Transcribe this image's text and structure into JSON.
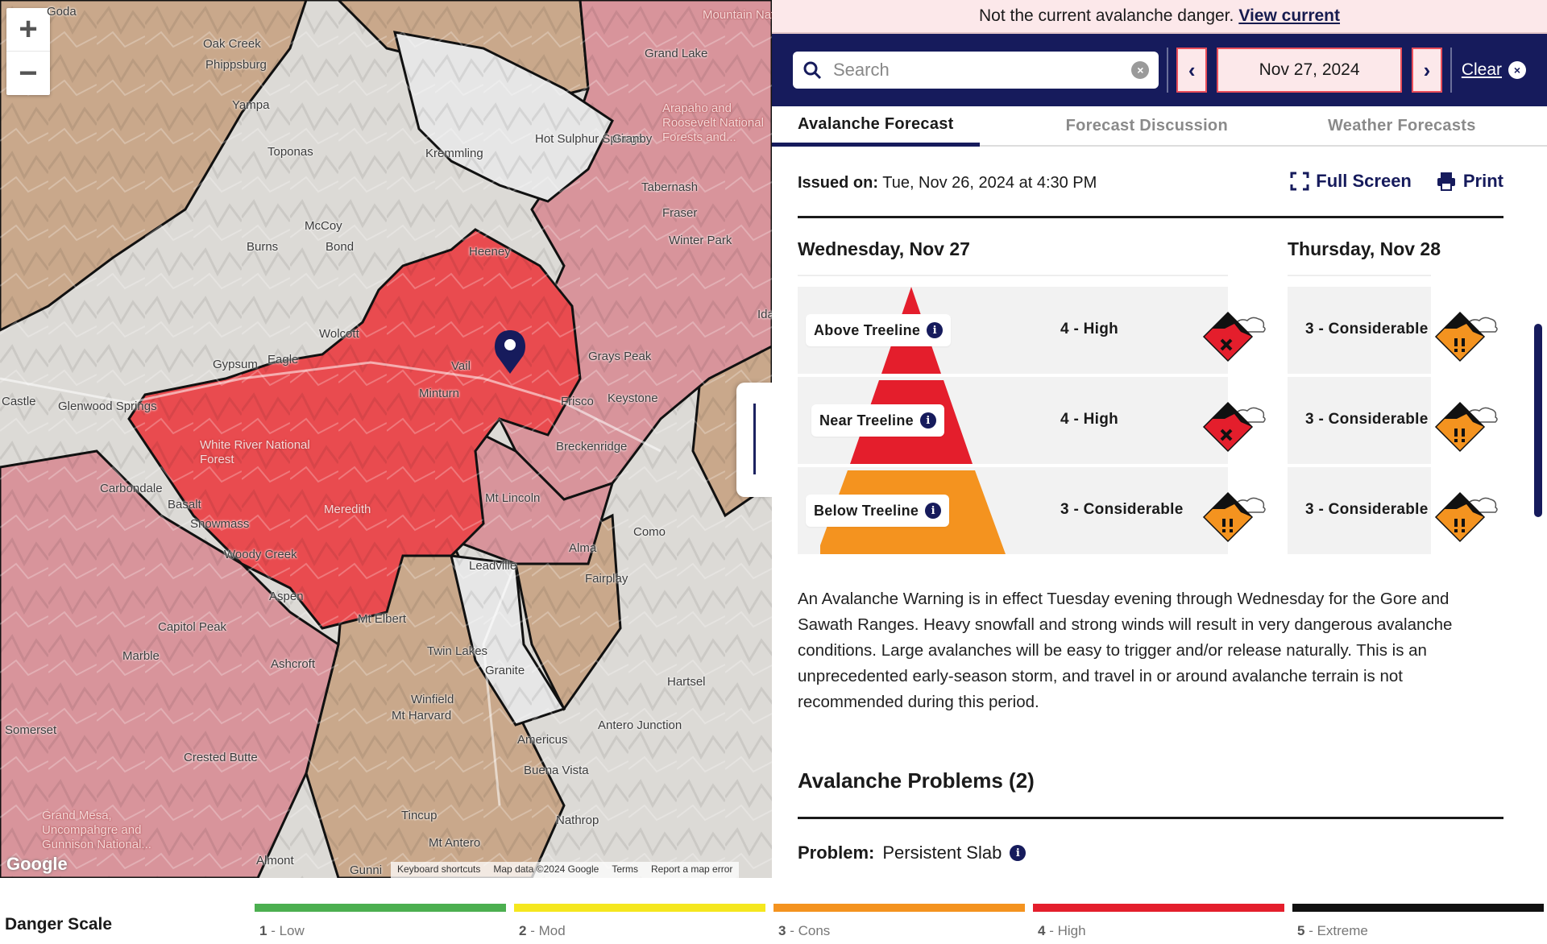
{
  "notice": {
    "text": "Not the current avalanche danger.",
    "link": "View current"
  },
  "search": {
    "placeholder": "Search"
  },
  "date": {
    "value": "Nov 27, 2024",
    "clear_label": "Clear"
  },
  "tabs": [
    {
      "label": "Avalanche Forecast"
    },
    {
      "label": "Forecast Discussion"
    },
    {
      "label": "Weather Forecasts"
    }
  ],
  "issued": {
    "label": "Issued on:",
    "value": "Tue, Nov 26, 2024 at 4:30 PM"
  },
  "tools": {
    "fullscreen": "Full Screen",
    "print": "Print"
  },
  "days": [
    {
      "title": "Wednesday, Nov 27",
      "rows": [
        {
          "elevation": "Above Treeline",
          "rating": "4 - High",
          "level": 4
        },
        {
          "elevation": "Near Treeline",
          "rating": "4 - High",
          "level": 4
        },
        {
          "elevation": "Below Treeline",
          "rating": "3 - Considerable",
          "level": 3
        }
      ]
    },
    {
      "title": "Thursday, Nov 28",
      "rows": [
        {
          "rating": "3 - Considerable",
          "level": 3
        },
        {
          "rating": "3 - Considerable",
          "level": 3
        },
        {
          "rating": "3 - Considerable",
          "level": 3
        }
      ]
    }
  ],
  "summary": "An Avalanche Warning is in effect Tuesday evening through Wednesday for the Gore and Sawath Ranges. Heavy snowfall and strong winds will result in very dangerous avalanche conditions. Large avalanches will be easy to trigger and/or release naturally. This is an unprecedented early-season storm, and travel in or around avalanche terrain is not recommended during this period.",
  "problems": {
    "title": "Avalanche Problems",
    "count": "(2)",
    "label": "Problem:",
    "first": "Persistent Slab"
  },
  "scale": {
    "title": "Danger Scale",
    "levels": [
      {
        "num": "1",
        "name": "- Low",
        "color": "#4caf50"
      },
      {
        "num": "2",
        "name": "- Mod",
        "color": "#f5e71e"
      },
      {
        "num": "3",
        "name": "- Cons",
        "color": "#f4931f"
      },
      {
        "num": "4",
        "name": "- High",
        "color": "#e41e2c"
      },
      {
        "num": "5",
        "name": "- Extreme",
        "color": "#111111"
      }
    ]
  },
  "colors": {
    "navy": "#161b5c",
    "high": "#e41e2c",
    "considerable": "#f4931f"
  },
  "map": {
    "labels": [
      {
        "text": "Oak Creek"
      },
      {
        "text": "Phippsburg"
      },
      {
        "text": "Yampa"
      },
      {
        "text": "Toponas"
      },
      {
        "text": "Kremmling"
      },
      {
        "text": "Hot Sulphur Springs"
      },
      {
        "text": "Granby"
      },
      {
        "text": "Grand Lake"
      },
      {
        "text": "McCoy"
      },
      {
        "text": "Burns"
      },
      {
        "text": "Bond"
      },
      {
        "text": "Wolcott"
      },
      {
        "text": "Gypsum"
      },
      {
        "text": "Eagle"
      },
      {
        "text": "Glenwood Springs"
      },
      {
        "text": "Castle"
      },
      {
        "text": "Vail"
      },
      {
        "text": "Minturn"
      },
      {
        "text": "Frisco"
      },
      {
        "text": "Keystone"
      },
      {
        "text": "Grays Peak"
      },
      {
        "text": "Breckenridge"
      },
      {
        "text": "Mt Lincoln"
      },
      {
        "text": "Alma"
      },
      {
        "text": "Fairplay"
      },
      {
        "text": "Como"
      },
      {
        "text": "Leadville"
      },
      {
        "text": "Carbondale"
      },
      {
        "text": "Basalt"
      },
      {
        "text": "Snowmass"
      },
      {
        "text": "Woody Creek"
      },
      {
        "text": "Capitol Peak"
      },
      {
        "text": "Aspen"
      },
      {
        "text": "Mt Elbert"
      },
      {
        "text": "Twin Lakes"
      },
      {
        "text": "Ashcroft"
      },
      {
        "text": "Granite"
      },
      {
        "text": "Hartsel"
      },
      {
        "text": "Winfield"
      },
      {
        "text": "Mt Harvard"
      },
      {
        "text": "Antero Junction"
      },
      {
        "text": "Americus"
      },
      {
        "text": "Buena Vista"
      },
      {
        "text": "Somerset"
      },
      {
        "text": "Crested Butte"
      },
      {
        "text": "Marble"
      },
      {
        "text": "Grand Mesa, Uncompahgre and Gunnison National..."
      },
      {
        "text": "Tincup"
      },
      {
        "text": "Nathrop"
      },
      {
        "text": "Mt Antero"
      },
      {
        "text": "Almont"
      },
      {
        "text": "Tabernash"
      },
      {
        "text": "Fraser"
      },
      {
        "text": "Winter Park"
      },
      {
        "text": "Heeney"
      },
      {
        "text": "Meredith"
      },
      {
        "text": "White River National Forest"
      },
      {
        "text": "Arapaho and Roosevelt National Forests and..."
      },
      {
        "text": "Mountain National Park"
      },
      {
        "text": "Gunni"
      },
      {
        "text": "Goda"
      },
      {
        "text": "Idaho"
      }
    ],
    "google": "Google",
    "attribution": [
      "Keyboard shortcuts",
      "Map data ©2024 Google",
      "Terms",
      "Report a map error"
    ]
  }
}
